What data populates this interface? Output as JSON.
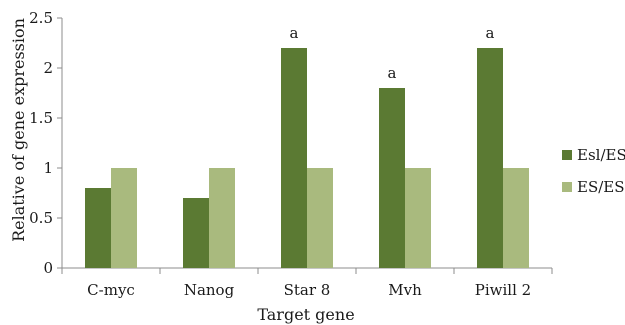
{
  "chart_data": {
    "type": "bar",
    "title": "",
    "xlabel": "Target gene",
    "ylabel": "Relative of gene expression",
    "categories": [
      "C-myc",
      "Nanog",
      "Star 8",
      "Mvh",
      "Piwill 2"
    ],
    "series": [
      {
        "name": "Esl/ES",
        "color": "#5b7a33",
        "values": [
          0.8,
          0.7,
          2.2,
          1.8,
          2.2
        ]
      },
      {
        "name": "ES/ES",
        "color": "#a9ba7e",
        "values": [
          1,
          1,
          1,
          1,
          1
        ]
      }
    ],
    "annotations": [
      "",
      "",
      "a",
      "a",
      "a"
    ],
    "ylim": [
      0,
      2.5
    ],
    "yticks": [
      "0",
      "0.5",
      "1",
      "1.5",
      "2",
      "2.5"
    ],
    "grid": false,
    "legend": "right"
  }
}
